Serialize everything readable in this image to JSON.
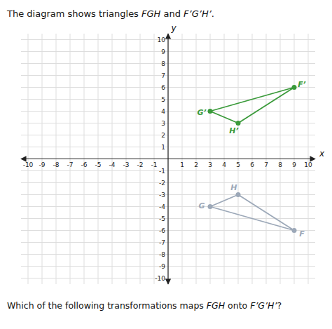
{
  "chart_data": {
    "type": "polygon",
    "title": [
      "The diagram shows triangles ",
      "FGH",
      " and ",
      "F’G’H’",
      "."
    ],
    "annotations": [
      [
        "Which of the following transformations maps ",
        "FGH",
        " onto ",
        "F’G’H’",
        "?"
      ]
    ],
    "x_label": "x",
    "y_label": "y",
    "xlim": [
      -10.5,
      10.5
    ],
    "ylim": [
      -10.5,
      10.5
    ],
    "xticks": [
      -10,
      -9,
      -8,
      -7,
      -6,
      -5,
      -4,
      -3,
      -2,
      -1,
      {
        "value": 0,
        "label": null
      },
      1,
      2,
      3,
      4,
      5,
      6,
      7,
      8,
      9,
      10
    ],
    "yticks": [
      -10,
      -9,
      -8,
      -7,
      -6,
      -5,
      -4,
      -3,
      -2,
      -1,
      {
        "value": 0,
        "label": null
      },
      1,
      2,
      3,
      4,
      5,
      6,
      7,
      8,
      9,
      10
    ],
    "grid": true,
    "marker": "circle",
    "series": [
      {
        "color": "#9ca8b8",
        "x": [
          9,
          3,
          5
        ],
        "values": [
          -6,
          -4,
          -3
        ],
        "point_labels": [
          "F",
          "G",
          "H"
        ]
      },
      {
        "color": "#3a9a3a",
        "x": [
          9,
          3,
          5
        ],
        "values": [
          6,
          4,
          3
        ],
        "point_labels": [
          "F’",
          "G’",
          "H’"
        ]
      }
    ]
  }
}
